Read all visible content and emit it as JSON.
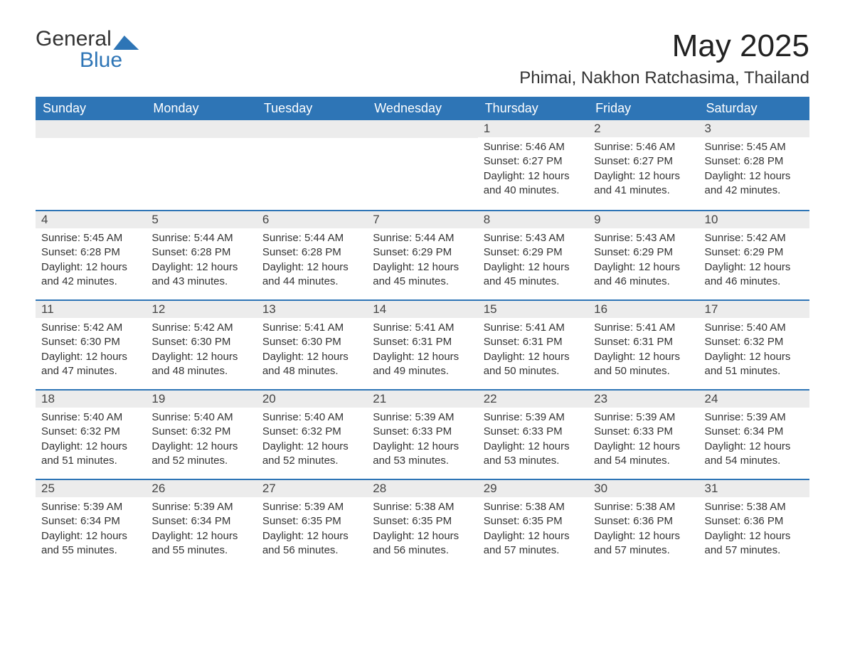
{
  "logo": {
    "word1": "General",
    "word2": "Blue"
  },
  "title": "May 2025",
  "subtitle": "Phimai, Nakhon Ratchasima, Thailand",
  "colors": {
    "header_bg": "#2e75b6",
    "header_text": "#ffffff",
    "row_divider": "#2e75b6",
    "daynum_bg": "#ececec",
    "body_text": "#333333",
    "page_bg": "#ffffff"
  },
  "daysOfWeek": [
    "Sunday",
    "Monday",
    "Tuesday",
    "Wednesday",
    "Thursday",
    "Friday",
    "Saturday"
  ],
  "weeks": [
    [
      null,
      null,
      null,
      null,
      {
        "n": "1",
        "sunrise": "Sunrise: 5:46 AM",
        "sunset": "Sunset: 6:27 PM",
        "day1": "Daylight: 12 hours",
        "day2": "and 40 minutes."
      },
      {
        "n": "2",
        "sunrise": "Sunrise: 5:46 AM",
        "sunset": "Sunset: 6:27 PM",
        "day1": "Daylight: 12 hours",
        "day2": "and 41 minutes."
      },
      {
        "n": "3",
        "sunrise": "Sunrise: 5:45 AM",
        "sunset": "Sunset: 6:28 PM",
        "day1": "Daylight: 12 hours",
        "day2": "and 42 minutes."
      }
    ],
    [
      {
        "n": "4",
        "sunrise": "Sunrise: 5:45 AM",
        "sunset": "Sunset: 6:28 PM",
        "day1": "Daylight: 12 hours",
        "day2": "and 42 minutes."
      },
      {
        "n": "5",
        "sunrise": "Sunrise: 5:44 AM",
        "sunset": "Sunset: 6:28 PM",
        "day1": "Daylight: 12 hours",
        "day2": "and 43 minutes."
      },
      {
        "n": "6",
        "sunrise": "Sunrise: 5:44 AM",
        "sunset": "Sunset: 6:28 PM",
        "day1": "Daylight: 12 hours",
        "day2": "and 44 minutes."
      },
      {
        "n": "7",
        "sunrise": "Sunrise: 5:44 AM",
        "sunset": "Sunset: 6:29 PM",
        "day1": "Daylight: 12 hours",
        "day2": "and 45 minutes."
      },
      {
        "n": "8",
        "sunrise": "Sunrise: 5:43 AM",
        "sunset": "Sunset: 6:29 PM",
        "day1": "Daylight: 12 hours",
        "day2": "and 45 minutes."
      },
      {
        "n": "9",
        "sunrise": "Sunrise: 5:43 AM",
        "sunset": "Sunset: 6:29 PM",
        "day1": "Daylight: 12 hours",
        "day2": "and 46 minutes."
      },
      {
        "n": "10",
        "sunrise": "Sunrise: 5:42 AM",
        "sunset": "Sunset: 6:29 PM",
        "day1": "Daylight: 12 hours",
        "day2": "and 46 minutes."
      }
    ],
    [
      {
        "n": "11",
        "sunrise": "Sunrise: 5:42 AM",
        "sunset": "Sunset: 6:30 PM",
        "day1": "Daylight: 12 hours",
        "day2": "and 47 minutes."
      },
      {
        "n": "12",
        "sunrise": "Sunrise: 5:42 AM",
        "sunset": "Sunset: 6:30 PM",
        "day1": "Daylight: 12 hours",
        "day2": "and 48 minutes."
      },
      {
        "n": "13",
        "sunrise": "Sunrise: 5:41 AM",
        "sunset": "Sunset: 6:30 PM",
        "day1": "Daylight: 12 hours",
        "day2": "and 48 minutes."
      },
      {
        "n": "14",
        "sunrise": "Sunrise: 5:41 AM",
        "sunset": "Sunset: 6:31 PM",
        "day1": "Daylight: 12 hours",
        "day2": "and 49 minutes."
      },
      {
        "n": "15",
        "sunrise": "Sunrise: 5:41 AM",
        "sunset": "Sunset: 6:31 PM",
        "day1": "Daylight: 12 hours",
        "day2": "and 50 minutes."
      },
      {
        "n": "16",
        "sunrise": "Sunrise: 5:41 AM",
        "sunset": "Sunset: 6:31 PM",
        "day1": "Daylight: 12 hours",
        "day2": "and 50 minutes."
      },
      {
        "n": "17",
        "sunrise": "Sunrise: 5:40 AM",
        "sunset": "Sunset: 6:32 PM",
        "day1": "Daylight: 12 hours",
        "day2": "and 51 minutes."
      }
    ],
    [
      {
        "n": "18",
        "sunrise": "Sunrise: 5:40 AM",
        "sunset": "Sunset: 6:32 PM",
        "day1": "Daylight: 12 hours",
        "day2": "and 51 minutes."
      },
      {
        "n": "19",
        "sunrise": "Sunrise: 5:40 AM",
        "sunset": "Sunset: 6:32 PM",
        "day1": "Daylight: 12 hours",
        "day2": "and 52 minutes."
      },
      {
        "n": "20",
        "sunrise": "Sunrise: 5:40 AM",
        "sunset": "Sunset: 6:32 PM",
        "day1": "Daylight: 12 hours",
        "day2": "and 52 minutes."
      },
      {
        "n": "21",
        "sunrise": "Sunrise: 5:39 AM",
        "sunset": "Sunset: 6:33 PM",
        "day1": "Daylight: 12 hours",
        "day2": "and 53 minutes."
      },
      {
        "n": "22",
        "sunrise": "Sunrise: 5:39 AM",
        "sunset": "Sunset: 6:33 PM",
        "day1": "Daylight: 12 hours",
        "day2": "and 53 minutes."
      },
      {
        "n": "23",
        "sunrise": "Sunrise: 5:39 AM",
        "sunset": "Sunset: 6:33 PM",
        "day1": "Daylight: 12 hours",
        "day2": "and 54 minutes."
      },
      {
        "n": "24",
        "sunrise": "Sunrise: 5:39 AM",
        "sunset": "Sunset: 6:34 PM",
        "day1": "Daylight: 12 hours",
        "day2": "and 54 minutes."
      }
    ],
    [
      {
        "n": "25",
        "sunrise": "Sunrise: 5:39 AM",
        "sunset": "Sunset: 6:34 PM",
        "day1": "Daylight: 12 hours",
        "day2": "and 55 minutes."
      },
      {
        "n": "26",
        "sunrise": "Sunrise: 5:39 AM",
        "sunset": "Sunset: 6:34 PM",
        "day1": "Daylight: 12 hours",
        "day2": "and 55 minutes."
      },
      {
        "n": "27",
        "sunrise": "Sunrise: 5:39 AM",
        "sunset": "Sunset: 6:35 PM",
        "day1": "Daylight: 12 hours",
        "day2": "and 56 minutes."
      },
      {
        "n": "28",
        "sunrise": "Sunrise: 5:38 AM",
        "sunset": "Sunset: 6:35 PM",
        "day1": "Daylight: 12 hours",
        "day2": "and 56 minutes."
      },
      {
        "n": "29",
        "sunrise": "Sunrise: 5:38 AM",
        "sunset": "Sunset: 6:35 PM",
        "day1": "Daylight: 12 hours",
        "day2": "and 57 minutes."
      },
      {
        "n": "30",
        "sunrise": "Sunrise: 5:38 AM",
        "sunset": "Sunset: 6:36 PM",
        "day1": "Daylight: 12 hours",
        "day2": "and 57 minutes."
      },
      {
        "n": "31",
        "sunrise": "Sunrise: 5:38 AM",
        "sunset": "Sunset: 6:36 PM",
        "day1": "Daylight: 12 hours",
        "day2": "and 57 minutes."
      }
    ]
  ]
}
